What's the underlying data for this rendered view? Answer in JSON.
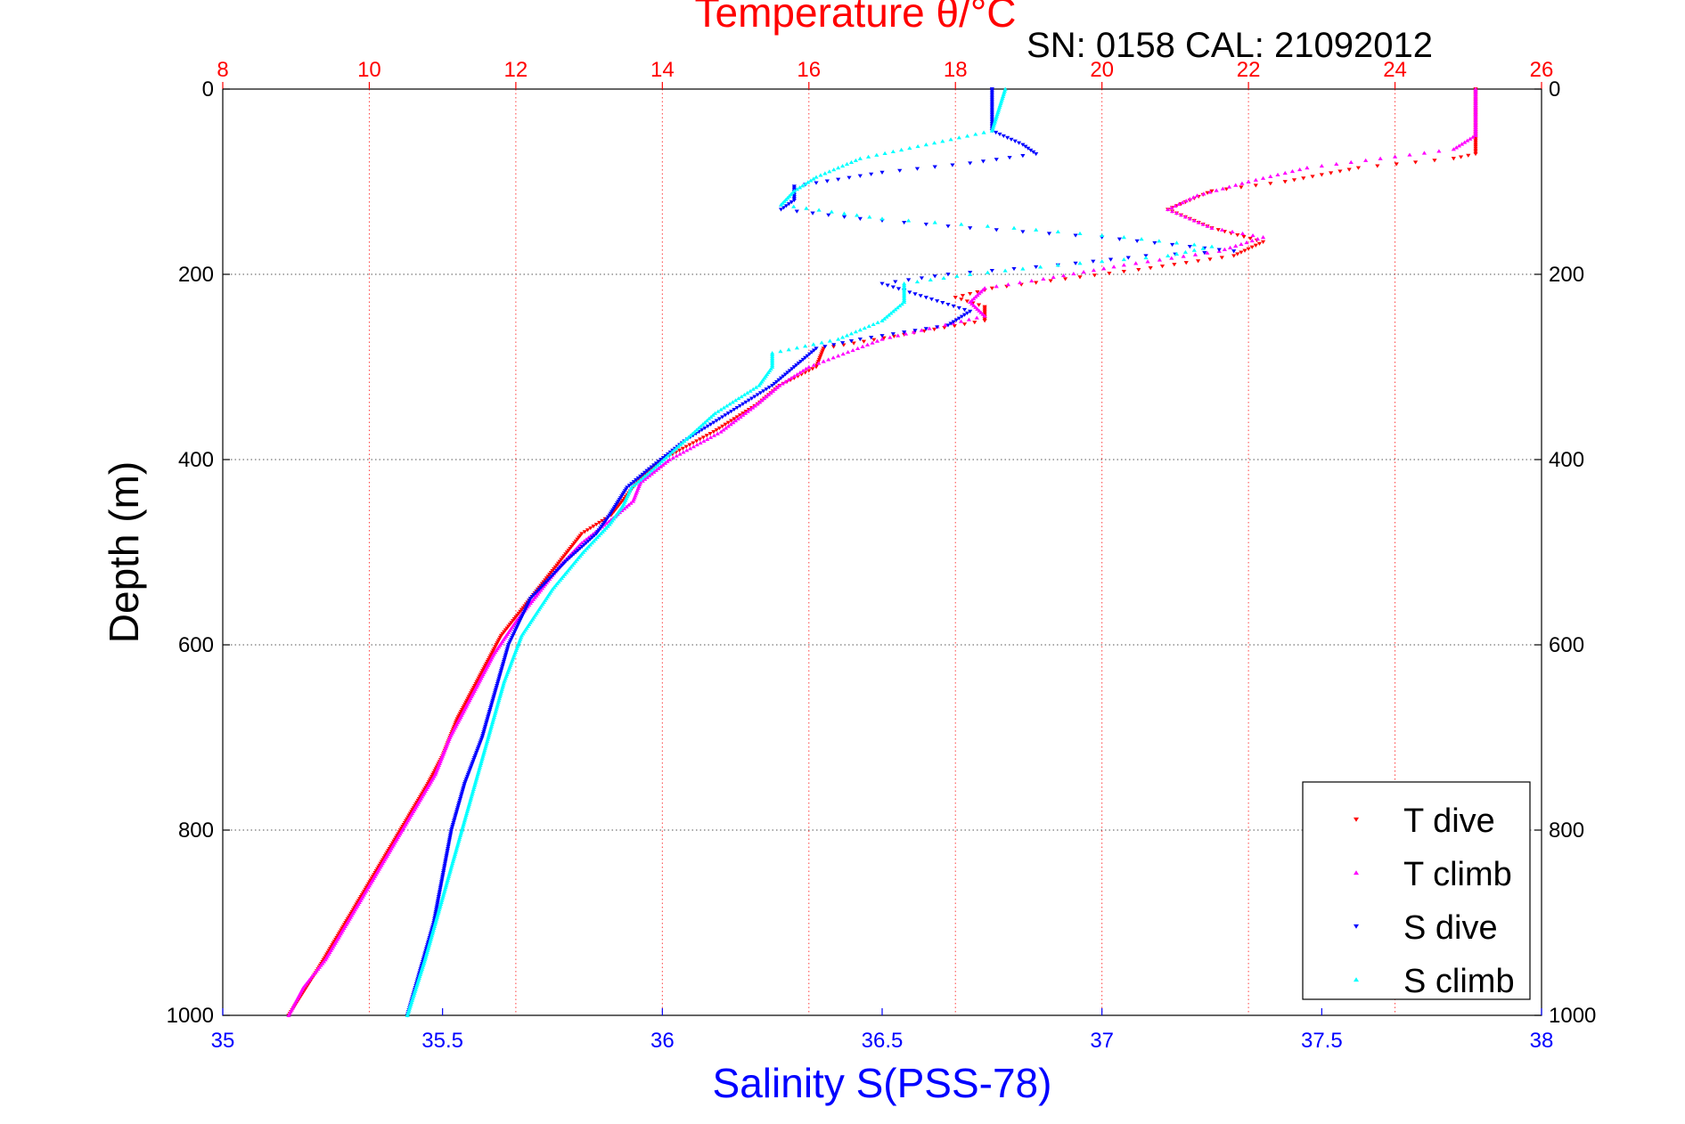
{
  "chart_data": {
    "type": "scatter",
    "top_axis": {
      "label": "Temperature θ/°C",
      "range": [
        8,
        26
      ],
      "ticks": [
        "8",
        "10",
        "12",
        "14",
        "16",
        "18",
        "20",
        "22",
        "24",
        "26"
      ],
      "color": "#ff0000"
    },
    "bottom_axis": {
      "label": "Salinity S(PSS-78)",
      "range": [
        35,
        38
      ],
      "ticks": [
        "35",
        "35.5",
        "36",
        "36.5",
        "37",
        "37.5",
        "38"
      ],
      "color": "#0000ff"
    },
    "y_axis": {
      "label": "Depth (m)",
      "range": [
        0,
        1000
      ],
      "inverted": true,
      "ticks": [
        "0",
        "200",
        "400",
        "600",
        "800",
        "1000"
      ]
    },
    "annotation": "SN: 0158  CAL: 21092012",
    "grid": true,
    "legend_position": "bottom-right",
    "series": [
      {
        "name": "T dive",
        "axis": "temperature",
        "color": "#ff0000",
        "marker": "triangle-down",
        "points": [
          [
            25.1,
            0
          ],
          [
            25.1,
            50
          ],
          [
            25.1,
            70
          ],
          [
            24.8,
            75
          ],
          [
            23.5,
            85
          ],
          [
            22.5,
            100
          ],
          [
            21.5,
            110
          ],
          [
            20.9,
            130
          ],
          [
            21.5,
            150
          ],
          [
            22.2,
            165
          ],
          [
            21.8,
            180
          ],
          [
            20.5,
            195
          ],
          [
            19.5,
            205
          ],
          [
            18.5,
            215
          ],
          [
            18.0,
            225
          ],
          [
            18.4,
            235
          ],
          [
            18.4,
            250
          ],
          [
            17.3,
            265
          ],
          [
            16.2,
            280
          ],
          [
            16.1,
            300
          ],
          [
            15.6,
            320
          ],
          [
            15.3,
            340
          ],
          [
            14.7,
            370
          ],
          [
            14.0,
            400
          ],
          [
            13.7,
            420
          ],
          [
            13.5,
            440
          ],
          [
            13.3,
            460
          ],
          [
            12.9,
            480
          ],
          [
            12.7,
            500
          ],
          [
            12.4,
            530
          ],
          [
            12.1,
            560
          ],
          [
            11.8,
            590
          ],
          [
            11.6,
            620
          ],
          [
            11.4,
            650
          ],
          [
            11.2,
            680
          ],
          [
            11.0,
            720
          ],
          [
            10.8,
            750
          ],
          [
            10.5,
            790
          ],
          [
            10.2,
            830
          ],
          [
            9.9,
            870
          ],
          [
            9.6,
            910
          ],
          [
            9.3,
            950
          ],
          [
            8.9,
            1000
          ]
        ]
      },
      {
        "name": "T climb",
        "axis": "temperature",
        "color": "#ff00ff",
        "marker": "triangle-up",
        "points": [
          [
            25.1,
            0
          ],
          [
            25.1,
            50
          ],
          [
            24.8,
            65
          ],
          [
            23.8,
            75
          ],
          [
            22.8,
            85
          ],
          [
            22.0,
            100
          ],
          [
            21.3,
            115
          ],
          [
            20.9,
            130
          ],
          [
            21.5,
            150
          ],
          [
            22.2,
            160
          ],
          [
            21.6,
            175
          ],
          [
            20.3,
            190
          ],
          [
            19.2,
            205
          ],
          [
            18.4,
            215
          ],
          [
            18.2,
            230
          ],
          [
            18.4,
            245
          ],
          [
            17.0,
            270
          ],
          [
            16.0,
            300
          ],
          [
            15.6,
            320
          ],
          [
            15.3,
            340
          ],
          [
            14.8,
            370
          ],
          [
            14.1,
            400
          ],
          [
            13.7,
            425
          ],
          [
            13.6,
            445
          ],
          [
            13.3,
            465
          ],
          [
            12.9,
            490
          ],
          [
            12.6,
            515
          ],
          [
            12.3,
            545
          ],
          [
            12.0,
            575
          ],
          [
            11.7,
            610
          ],
          [
            11.5,
            640
          ],
          [
            11.3,
            670
          ],
          [
            11.1,
            700
          ],
          [
            10.9,
            740
          ],
          [
            10.6,
            780
          ],
          [
            10.3,
            820
          ],
          [
            10.0,
            860
          ],
          [
            9.7,
            900
          ],
          [
            9.4,
            940
          ],
          [
            9.1,
            970
          ],
          [
            8.9,
            1000
          ]
        ]
      },
      {
        "name": "S dive",
        "axis": "salinity",
        "color": "#0000ff",
        "marker": "triangle-down",
        "points": [
          [
            36.75,
            0
          ],
          [
            36.75,
            45
          ],
          [
            36.82,
            60
          ],
          [
            36.85,
            70
          ],
          [
            36.7,
            80
          ],
          [
            36.5,
            90
          ],
          [
            36.3,
            105
          ],
          [
            36.3,
            120
          ],
          [
            36.27,
            130
          ],
          [
            36.45,
            140
          ],
          [
            36.7,
            150
          ],
          [
            37.0,
            160
          ],
          [
            37.2,
            170
          ],
          [
            37.3,
            175
          ],
          [
            37.1,
            180
          ],
          [
            36.9,
            190
          ],
          [
            36.65,
            200
          ],
          [
            36.5,
            210
          ],
          [
            36.6,
            225
          ],
          [
            36.7,
            240
          ],
          [
            36.65,
            255
          ],
          [
            36.45,
            270
          ],
          [
            36.35,
            280
          ],
          [
            36.3,
            300
          ],
          [
            36.25,
            320
          ],
          [
            36.15,
            350
          ],
          [
            36.05,
            380
          ],
          [
            35.97,
            410
          ],
          [
            35.92,
            430
          ],
          [
            35.9,
            445
          ],
          [
            35.88,
            460
          ],
          [
            35.85,
            480
          ],
          [
            35.78,
            510
          ],
          [
            35.7,
            550
          ],
          [
            35.65,
            600
          ],
          [
            35.62,
            650
          ],
          [
            35.59,
            700
          ],
          [
            35.55,
            750
          ],
          [
            35.52,
            800
          ],
          [
            35.5,
            850
          ],
          [
            35.48,
            900
          ],
          [
            35.45,
            950
          ],
          [
            35.42,
            1000
          ]
        ]
      },
      {
        "name": "S climb",
        "axis": "salinity",
        "color": "#00ffff",
        "marker": "triangle-up",
        "points": [
          [
            36.78,
            0
          ],
          [
            36.75,
            45
          ],
          [
            36.6,
            60
          ],
          [
            36.45,
            75
          ],
          [
            36.35,
            95
          ],
          [
            36.3,
            110
          ],
          [
            36.27,
            125
          ],
          [
            36.5,
            140
          ],
          [
            36.8,
            150
          ],
          [
            37.05,
            160
          ],
          [
            37.25,
            170
          ],
          [
            37.15,
            180
          ],
          [
            36.9,
            190
          ],
          [
            36.7,
            200
          ],
          [
            36.55,
            210
          ],
          [
            36.55,
            230
          ],
          [
            36.5,
            250
          ],
          [
            36.4,
            270
          ],
          [
            36.25,
            285
          ],
          [
            36.25,
            300
          ],
          [
            36.22,
            320
          ],
          [
            36.12,
            350
          ],
          [
            36.05,
            380
          ],
          [
            35.98,
            410
          ],
          [
            35.93,
            430
          ],
          [
            35.91,
            450
          ],
          [
            35.88,
            470
          ],
          [
            35.82,
            500
          ],
          [
            35.75,
            540
          ],
          [
            35.68,
            590
          ],
          [
            35.64,
            640
          ],
          [
            35.61,
            690
          ],
          [
            35.58,
            740
          ],
          [
            35.55,
            790
          ],
          [
            35.52,
            840
          ],
          [
            35.49,
            890
          ],
          [
            35.46,
            940
          ],
          [
            35.44,
            970
          ],
          [
            35.42,
            1000
          ]
        ]
      }
    ]
  }
}
